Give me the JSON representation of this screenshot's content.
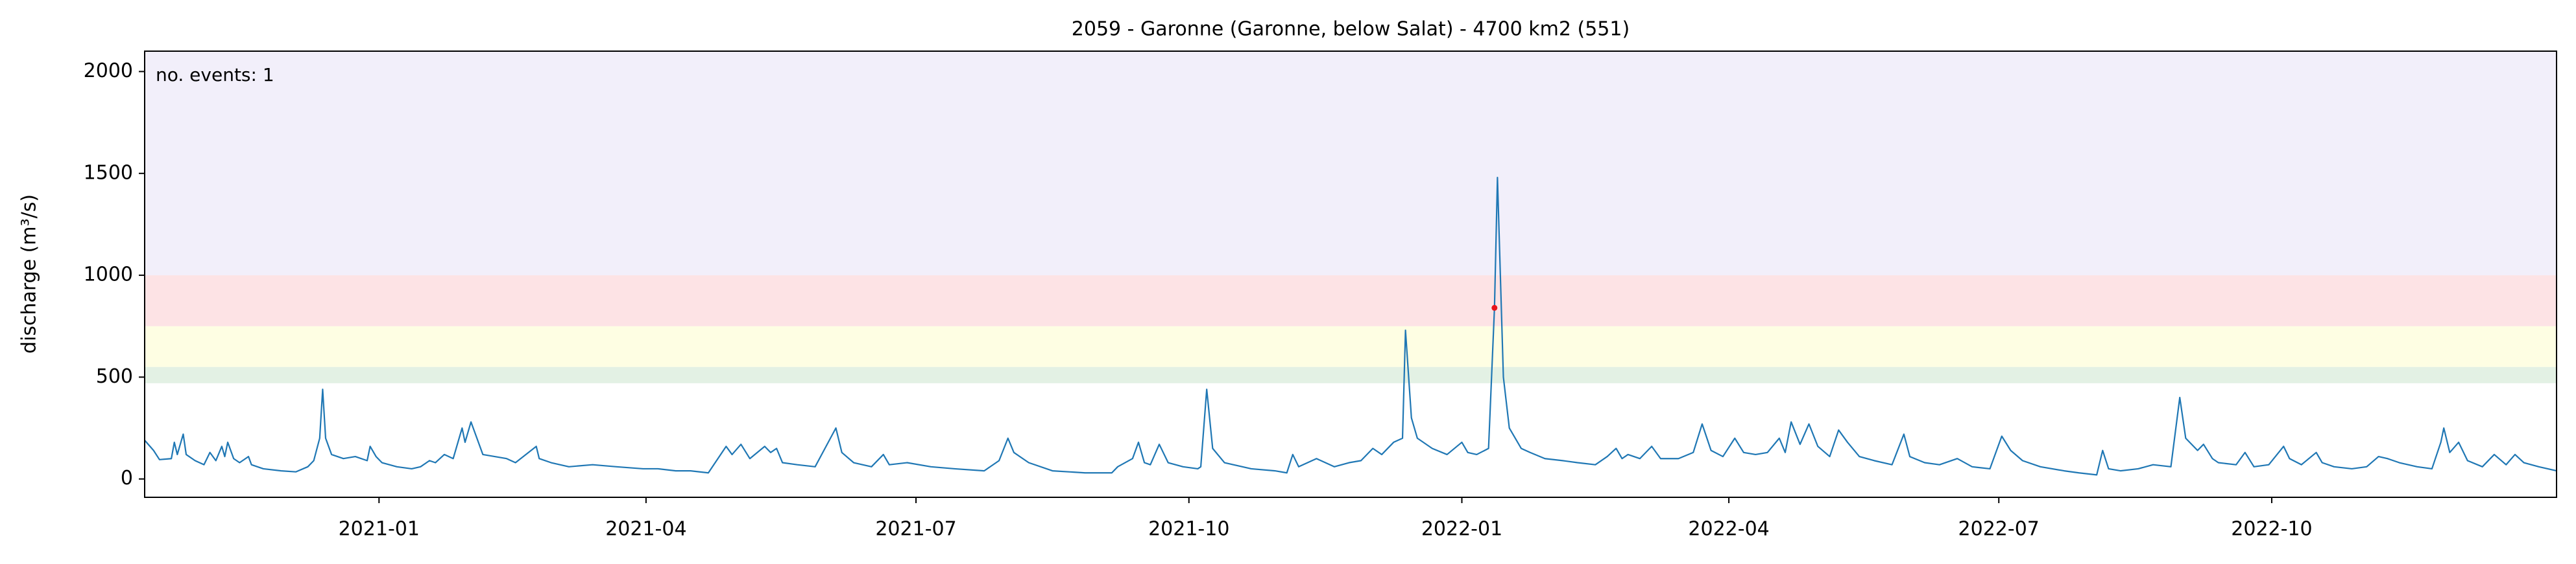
{
  "chart_data": {
    "type": "line",
    "title": "2059 - Garonne (Garonne, below Salat) - 4700 km2 (551)",
    "y_label": "discharge (m³/s)",
    "annotation": "no. events: 1",
    "annotation_color": "#e8141c",
    "color": "#1f77b4",
    "xlim": [
      "2020-10-14",
      "2023-01-05"
    ],
    "xticks": [
      "2021-01",
      "2021-04",
      "2021-07",
      "2021-10",
      "2022-01",
      "2022-04",
      "2022-07",
      "2022-10"
    ],
    "ylim": [
      -90,
      2100
    ],
    "yticks": [
      0,
      500,
      1000,
      1500,
      2000
    ],
    "grid": false,
    "bands": [
      {
        "from": 470,
        "to": 550,
        "color": "#e3f1e4"
      },
      {
        "from": 550,
        "to": 750,
        "color": "#fefee3"
      },
      {
        "from": 750,
        "to": 1000,
        "color": "#fde3e5"
      },
      {
        "from": 1000,
        "to": 2100,
        "color": "#f2effa"
      }
    ],
    "events": [
      {
        "x": "2022-01-12",
        "value": 840,
        "color": "#e8141c"
      }
    ],
    "x": [
      "2020-10-14",
      "2020-10-17",
      "2020-10-19",
      "2020-10-23",
      "2020-10-24",
      "2020-10-25",
      "2020-10-27",
      "2020-10-28",
      "2020-10-31",
      "2020-11-03",
      "2020-11-05",
      "2020-11-07",
      "2020-11-09",
      "2020-11-10",
      "2020-11-11",
      "2020-11-13",
      "2020-11-15",
      "2020-11-18",
      "2020-11-19",
      "2020-11-23",
      "2020-11-29",
      "2020-12-04",
      "2020-12-08",
      "2020-12-10",
      "2020-12-12",
      "2020-12-13",
      "2020-12-14",
      "2020-12-16",
      "2020-12-20",
      "2020-12-24",
      "2020-12-28",
      "2020-12-29",
      "2020-12-31",
      "2021-01-02",
      "2021-01-07",
      "2021-01-12",
      "2021-01-15",
      "2021-01-18",
      "2021-01-20",
      "2021-01-23",
      "2021-01-26",
      "2021-01-29",
      "2021-01-30",
      "2021-02-01",
      "2021-02-03",
      "2021-02-05",
      "2021-02-09",
      "2021-02-13",
      "2021-02-16",
      "2021-02-23",
      "2021-02-24",
      "2021-02-28",
      "2021-03-06",
      "2021-03-14",
      "2021-03-22",
      "2021-03-31",
      "2021-04-05",
      "2021-04-11",
      "2021-04-16",
      "2021-04-22",
      "2021-04-28",
      "2021-04-30",
      "2021-05-03",
      "2021-05-06",
      "2021-05-11",
      "2021-05-13",
      "2021-05-15",
      "2021-05-17",
      "2021-05-22",
      "2021-05-28",
      "2021-06-04",
      "2021-06-06",
      "2021-06-10",
      "2021-06-16",
      "2021-06-20",
      "2021-06-22",
      "2021-06-28",
      "2021-07-06",
      "2021-07-14",
      "2021-07-24",
      "2021-07-29",
      "2021-08-01",
      "2021-08-03",
      "2021-08-08",
      "2021-08-16",
      "2021-08-27",
      "2021-09-05",
      "2021-09-07",
      "2021-09-12",
      "2021-09-14",
      "2021-09-16",
      "2021-09-18",
      "2021-09-21",
      "2021-09-24",
      "2021-09-29",
      "2021-10-04",
      "2021-10-05",
      "2021-10-07",
      "2021-10-09",
      "2021-10-13",
      "2021-10-22",
      "2021-10-30",
      "2021-11-03",
      "2021-11-05",
      "2021-11-07",
      "2021-11-13",
      "2021-11-16",
      "2021-11-19",
      "2021-11-24",
      "2021-11-28",
      "2021-12-02",
      "2021-12-05",
      "2021-12-09",
      "2021-12-12",
      "2021-12-13",
      "2021-12-15",
      "2021-12-17",
      "2021-12-22",
      "2021-12-27",
      "2022-01-01",
      "2022-01-03",
      "2022-01-06",
      "2022-01-10",
      "2022-01-12",
      "2022-01-13",
      "2022-01-15",
      "2022-01-17",
      "2022-01-21",
      "2022-01-24",
      "2022-01-29",
      "2022-02-04",
      "2022-02-09",
      "2022-02-15",
      "2022-02-19",
      "2022-02-22",
      "2022-02-24",
      "2022-02-26",
      "2022-03-02",
      "2022-03-06",
      "2022-03-09",
      "2022-03-15",
      "2022-03-20",
      "2022-03-23",
      "2022-03-26",
      "2022-03-30",
      "2022-04-03",
      "2022-04-06",
      "2022-04-10",
      "2022-04-14",
      "2022-04-18",
      "2022-04-20",
      "2022-04-22",
      "2022-04-25",
      "2022-04-28",
      "2022-05-01",
      "2022-05-05",
      "2022-05-08",
      "2022-05-11",
      "2022-05-15",
      "2022-05-20",
      "2022-05-26",
      "2022-05-30",
      "2022-06-01",
      "2022-06-06",
      "2022-06-11",
      "2022-06-17",
      "2022-06-22",
      "2022-06-28",
      "2022-07-02",
      "2022-07-05",
      "2022-07-09",
      "2022-07-15",
      "2022-07-23",
      "2022-07-28",
      "2022-08-03",
      "2022-08-05",
      "2022-08-07",
      "2022-08-11",
      "2022-08-17",
      "2022-08-22",
      "2022-08-28",
      "2022-08-31",
      "2022-09-02",
      "2022-09-06",
      "2022-09-08",
      "2022-09-11",
      "2022-09-13",
      "2022-09-19",
      "2022-09-22",
      "2022-09-25",
      "2022-09-30",
      "2022-10-05",
      "2022-10-07",
      "2022-10-11",
      "2022-10-16",
      "2022-10-18",
      "2022-10-22",
      "2022-10-28",
      "2022-11-02",
      "2022-11-06",
      "2022-11-09",
      "2022-11-13",
      "2022-11-19",
      "2022-11-24",
      "2022-11-27",
      "2022-11-28",
      "2022-11-30",
      "2022-12-03",
      "2022-12-06",
      "2022-12-11",
      "2022-12-15",
      "2022-12-19",
      "2022-12-22",
      "2022-12-25",
      "2022-12-30",
      "2023-01-05"
    ],
    "values": [
      190,
      140,
      95,
      100,
      180,
      120,
      220,
      120,
      90,
      70,
      130,
      90,
      160,
      110,
      180,
      100,
      80,
      110,
      70,
      50,
      40,
      35,
      60,
      90,
      200,
      440,
      200,
      120,
      100,
      110,
      90,
      160,
      110,
      80,
      60,
      50,
      60,
      90,
      80,
      120,
      100,
      250,
      180,
      280,
      200,
      120,
      110,
      100,
      80,
      160,
      100,
      80,
      60,
      70,
      60,
      50,
      50,
      40,
      40,
      30,
      160,
      120,
      170,
      100,
      160,
      130,
      150,
      80,
      70,
      60,
      250,
      130,
      80,
      60,
      120,
      70,
      80,
      60,
      50,
      40,
      90,
      200,
      130,
      80,
      40,
      30,
      30,
      60,
      100,
      180,
      80,
      70,
      170,
      80,
      60,
      50,
      60,
      440,
      150,
      80,
      50,
      40,
      30,
      120,
      60,
      100,
      80,
      60,
      80,
      90,
      150,
      120,
      180,
      200,
      730,
      300,
      200,
      150,
      120,
      180,
      130,
      120,
      150,
      840,
      1480,
      500,
      250,
      150,
      130,
      100,
      90,
      80,
      70,
      110,
      150,
      100,
      120,
      100,
      160,
      100,
      100,
      130,
      270,
      140,
      110,
      200,
      130,
      120,
      130,
      200,
      130,
      280,
      170,
      270,
      160,
      110,
      240,
      180,
      110,
      90,
      70,
      220,
      110,
      80,
      70,
      100,
      60,
      50,
      210,
      140,
      90,
      60,
      40,
      30,
      20,
      140,
      50,
      40,
      50,
      70,
      60,
      400,
      200,
      140,
      170,
      100,
      80,
      70,
      130,
      60,
      70,
      160,
      100,
      70,
      130,
      80,
      60,
      50,
      60,
      110,
      100,
      80,
      60,
      50,
      180,
      250,
      130,
      180,
      90,
      60,
      120,
      70,
      120,
      80,
      60,
      40
    ]
  }
}
